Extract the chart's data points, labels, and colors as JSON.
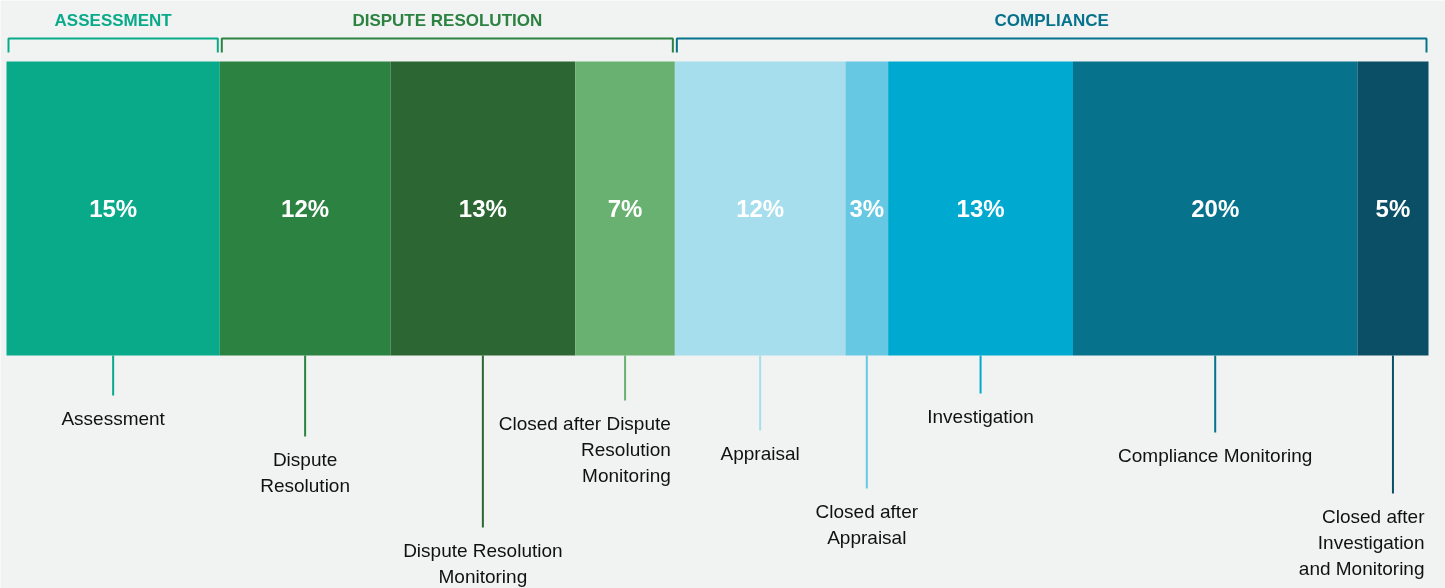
{
  "chart_data": {
    "type": "bar",
    "stacked": true,
    "orientation": "horizontal",
    "categories": [
      null
    ],
    "tick_labels": false,
    "grid": false,
    "legend": "bottom",
    "series": [
      {
        "name": "Assessment",
        "color": "#08aa8a",
        "values": [
          15
        ],
        "value_labels": [
          "15%"
        ]
      },
      {
        "name": "Dispute Resolution",
        "color": "#2b8241",
        "values": [
          12
        ],
        "value_labels": [
          "12%"
        ]
      },
      {
        "name": "Dispute Resolution Monitoring",
        "color": "#2c6733",
        "values": [
          13
        ],
        "value_labels": [
          "13%"
        ]
      },
      {
        "name": "Closed after Dispute Resolution Monitoring",
        "color": "#69b170",
        "values": [
          7
        ],
        "value_labels": [
          "7%"
        ]
      },
      {
        "name": "Appraisal",
        "color": "#a6deed",
        "values": [
          12
        ],
        "value_labels": [
          "12%"
        ]
      },
      {
        "name": "Closed after Appraisal",
        "color": "#66c8e2",
        "values": [
          3
        ],
        "value_labels": [
          "3%"
        ]
      },
      {
        "name": "Investigation",
        "color": "#00a9d0",
        "values": [
          13
        ],
        "value_labels": [
          "13%"
        ]
      },
      {
        "name": "Compliance Monitoring",
        "color": "#06728c",
        "values": [
          20
        ],
        "value_labels": [
          "20%"
        ]
      },
      {
        "name": "Closed after Investigation and Monitoring",
        "color": "#0b4f67",
        "values": [
          5
        ],
        "value_labels": [
          "5%"
        ]
      }
    ],
    "annotations": [
      "ASSESSMENT",
      "DISPUTE RESOLUTION",
      "COMPLIANCE"
    ]
  }
}
